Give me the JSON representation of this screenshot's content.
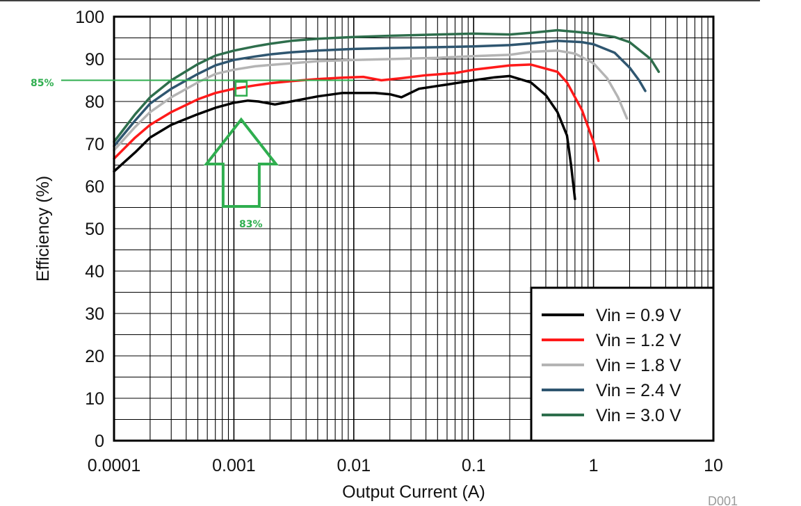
{
  "chart_data": {
    "type": "line",
    "xlabel": "Output Current (A)",
    "ylabel": "Efficiency (%)",
    "xscale": "log",
    "xlim": [
      0.0001,
      10
    ],
    "ylim": [
      0,
      100
    ],
    "grid": true,
    "legend_position": "bottom-right",
    "x_tick_labels": [
      "0.0001",
      "0.001",
      "0.01",
      "0.1",
      "1",
      "10"
    ],
    "y_tick_labels": [
      "0",
      "10",
      "20",
      "30",
      "40",
      "50",
      "60",
      "70",
      "80",
      "90",
      "100"
    ],
    "series": [
      {
        "name": "Vin = 0.9 V",
        "color": "#000000",
        "points": [
          [
            0.0001,
            63.5
          ],
          [
            0.00015,
            68
          ],
          [
            0.0002,
            71.5
          ],
          [
            0.0003,
            74.5
          ],
          [
            0.0005,
            77
          ],
          [
            0.0007,
            78.5
          ],
          [
            0.001,
            79.7
          ],
          [
            0.0013,
            80.2
          ],
          [
            0.0016,
            80
          ],
          [
            0.0022,
            79.3
          ],
          [
            0.003,
            80
          ],
          [
            0.005,
            81.2
          ],
          [
            0.008,
            82
          ],
          [
            0.015,
            82
          ],
          [
            0.02,
            81.7
          ],
          [
            0.025,
            81
          ],
          [
            0.035,
            83
          ],
          [
            0.06,
            84
          ],
          [
            0.1,
            85
          ],
          [
            0.15,
            85.7
          ],
          [
            0.2,
            86
          ],
          [
            0.3,
            84.5
          ],
          [
            0.4,
            81.5
          ],
          [
            0.5,
            77.5
          ],
          [
            0.6,
            72
          ],
          [
            0.65,
            65
          ],
          [
            0.7,
            57
          ]
        ]
      },
      {
        "name": "Vin = 1.2 V",
        "color": "#ff1a1a",
        "points": [
          [
            0.0001,
            66.5
          ],
          [
            0.00015,
            71.5
          ],
          [
            0.0002,
            74.5
          ],
          [
            0.0003,
            77.5
          ],
          [
            0.0005,
            80.5
          ],
          [
            0.0007,
            82
          ],
          [
            0.001,
            83
          ],
          [
            0.0015,
            83.8
          ],
          [
            0.002,
            84.3
          ],
          [
            0.003,
            84.8
          ],
          [
            0.005,
            85.3
          ],
          [
            0.008,
            85.6
          ],
          [
            0.012,
            85.8
          ],
          [
            0.017,
            85
          ],
          [
            0.025,
            85.5
          ],
          [
            0.04,
            86.2
          ],
          [
            0.07,
            86.7
          ],
          [
            0.1,
            87.5
          ],
          [
            0.2,
            88.5
          ],
          [
            0.3,
            88.7
          ],
          [
            0.5,
            87
          ],
          [
            0.6,
            84.5
          ],
          [
            0.8,
            78
          ],
          [
            1,
            70.5
          ],
          [
            1.1,
            66
          ]
        ]
      },
      {
        "name": "Vin = 1.8 V",
        "color": "#b4b4b4",
        "points": [
          [
            0.0001,
            68.5
          ],
          [
            0.00015,
            74
          ],
          [
            0.0002,
            77.5
          ],
          [
            0.0003,
            81
          ],
          [
            0.0005,
            84.5
          ],
          [
            0.0007,
            86.5
          ],
          [
            0.001,
            87.5
          ],
          [
            0.0015,
            88.3
          ],
          [
            0.002,
            88.6
          ],
          [
            0.003,
            89
          ],
          [
            0.005,
            89.5
          ],
          [
            0.01,
            89.8
          ],
          [
            0.02,
            90
          ],
          [
            0.05,
            90.3
          ],
          [
            0.1,
            90.7
          ],
          [
            0.2,
            91
          ],
          [
            0.3,
            91.7
          ],
          [
            0.5,
            92
          ],
          [
            0.7,
            91.3
          ],
          [
            1,
            89
          ],
          [
            1.3,
            85.5
          ],
          [
            1.6,
            81
          ],
          [
            1.9,
            76
          ]
        ]
      },
      {
        "name": "Vin = 2.4 V",
        "color": "#2f5670",
        "points": [
          [
            0.0001,
            69.5
          ],
          [
            0.00015,
            75.5
          ],
          [
            0.0002,
            79.5
          ],
          [
            0.0003,
            83
          ],
          [
            0.0005,
            86.5
          ],
          [
            0.0007,
            88.5
          ],
          [
            0.001,
            89.8
          ],
          [
            0.0015,
            90.6
          ],
          [
            0.002,
            91.1
          ],
          [
            0.003,
            91.6
          ],
          [
            0.005,
            92
          ],
          [
            0.01,
            92.4
          ],
          [
            0.02,
            92.6
          ],
          [
            0.05,
            92.8
          ],
          [
            0.1,
            93
          ],
          [
            0.2,
            93.3
          ],
          [
            0.3,
            93.7
          ],
          [
            0.5,
            94.3
          ],
          [
            0.8,
            94
          ],
          [
            1,
            93.5
          ],
          [
            1.5,
            91.5
          ],
          [
            2,
            88
          ],
          [
            2.4,
            85
          ],
          [
            2.7,
            82.5
          ]
        ]
      },
      {
        "name": "Vin = 3.0 V",
        "color": "#2e6e4c",
        "points": [
          [
            0.0001,
            70.5
          ],
          [
            0.00015,
            77
          ],
          [
            0.0002,
            81
          ],
          [
            0.0003,
            85
          ],
          [
            0.0005,
            88.8
          ],
          [
            0.0007,
            90.8
          ],
          [
            0.001,
            92
          ],
          [
            0.0015,
            93
          ],
          [
            0.002,
            93.6
          ],
          [
            0.003,
            94.3
          ],
          [
            0.005,
            94.8
          ],
          [
            0.01,
            95.2
          ],
          [
            0.02,
            95.5
          ],
          [
            0.05,
            95.8
          ],
          [
            0.1,
            96
          ],
          [
            0.2,
            95.8
          ],
          [
            0.3,
            96.2
          ],
          [
            0.5,
            96.8
          ],
          [
            0.8,
            96.3
          ],
          [
            1,
            96
          ],
          [
            1.5,
            95.2
          ],
          [
            2,
            94
          ],
          [
            3,
            90
          ],
          [
            3.5,
            87
          ]
        ]
      }
    ],
    "annotations": {
      "left_label": "85%",
      "arrow_label": "83%",
      "left_line_value": 85,
      "marker_point": [
        0.00115,
        83
      ],
      "color": "#2fae4f"
    }
  },
  "figure_code": "D001"
}
